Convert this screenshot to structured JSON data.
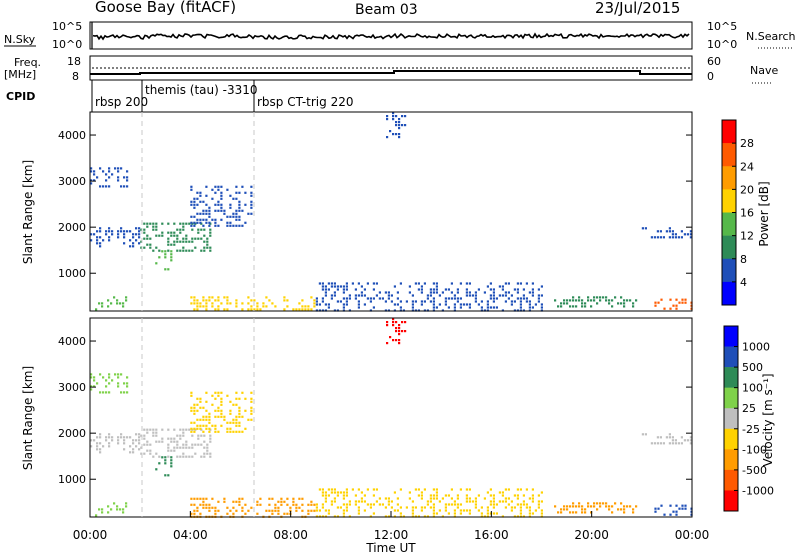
{
  "header": {
    "station": "Goose Bay (fitACF)",
    "beam": "Beam 03",
    "date": "23/Jul/2015"
  },
  "top_panel": {
    "left_label": "N.Sky",
    "left_ticks": [
      "10^5",
      "10^0"
    ],
    "right_ticks": [
      "10^5",
      "10^0"
    ],
    "right_label": "N.Search"
  },
  "freq_panel": {
    "left_label_line1": "Freq.",
    "left_label_line2": "[MHz]",
    "left_ticks": [
      "18",
      "8"
    ],
    "right_ticks": [
      "60",
      "0"
    ],
    "right_label": "Nave"
  },
  "cpid": {
    "label": "CPID",
    "segments": [
      {
        "start_hour": 0.0,
        "text": "rbsp 200"
      },
      {
        "start_hour": 2.0,
        "text": "themis (tau)  -3310"
      },
      {
        "start_hour": 6.5,
        "text": "rbsp CT-trig 220"
      }
    ]
  },
  "colors": {
    "power": [
      "#0000ff",
      "#1f4fb8",
      "#2e8b57",
      "#56b84a",
      "#ffd200",
      "#ff9c00",
      "#ff5a00",
      "#ff0000"
    ],
    "velocity": [
      "#ff0000",
      "#ff5a00",
      "#ff9c00",
      "#ffd200",
      "#bfbfbf",
      "#7fd24a",
      "#2e8b57",
      "#1f4fb8",
      "#0000ff"
    ]
  },
  "chart_data": [
    {
      "type": "heatmap",
      "title": "",
      "xlabel": "",
      "ylabel": "Slant Range [km]",
      "xlim": [
        0,
        24
      ],
      "ylim": [
        180,
        4500
      ],
      "yticks": [
        "1000",
        "2000",
        "3000",
        "4000"
      ],
      "colorbar_label": "Power [dB]",
      "colorbar_ticks": [
        "4",
        "8",
        "12",
        "16",
        "20",
        "24",
        "28"
      ],
      "regions": [
        {
          "x": [
            0.0,
            1.5
          ],
          "y": [
            2900,
            3300
          ],
          "level": 1
        },
        {
          "x": [
            0.0,
            2.0
          ],
          "y": [
            1600,
            2000
          ],
          "level": 1
        },
        {
          "x": [
            2.0,
            4.8
          ],
          "y": [
            1500,
            2100
          ],
          "level": 2
        },
        {
          "x": [
            4.0,
            6.4
          ],
          "y": [
            2000,
            2900
          ],
          "level": 1
        },
        {
          "x": [
            2.6,
            3.2
          ],
          "y": [
            1100,
            1500
          ],
          "level": 3
        },
        {
          "x": [
            0.2,
            1.4
          ],
          "y": [
            200,
            500
          ],
          "level": 3
        },
        {
          "x": [
            4.0,
            9.0
          ],
          "y": [
            200,
            500
          ],
          "level": 4
        },
        {
          "x": [
            9.0,
            18.0
          ],
          "y": [
            200,
            800
          ],
          "level": 1
        },
        {
          "x": [
            18.5,
            21.8
          ],
          "y": [
            300,
            500
          ],
          "level": 2
        },
        {
          "x": [
            22.0,
            24.0
          ],
          "y": [
            1800,
            2000
          ],
          "level": 1
        },
        {
          "x": [
            22.5,
            24.0
          ],
          "y": [
            200,
            450
          ],
          "level": 6
        },
        {
          "x": [
            11.8,
            12.6
          ],
          "y": [
            3900,
            4500
          ],
          "level": 1
        }
      ]
    },
    {
      "type": "heatmap",
      "title": "",
      "xlabel": "Time UT",
      "ylabel": "Slant Range [km]",
      "xlim": [
        0,
        24
      ],
      "ylim": [
        180,
        4500
      ],
      "xticks": [
        "00:00",
        "04:00",
        "08:00",
        "12:00",
        "16:00",
        "20:00",
        "00:00"
      ],
      "yticks": [
        "1000",
        "2000",
        "3000",
        "4000"
      ],
      "colorbar_label": "Velocity [m s⁻¹]",
      "colorbar_ticks": [
        "1000",
        "500",
        "100",
        "25",
        "-25",
        "-100",
        "-500",
        "-1000"
      ],
      "regions": [
        {
          "x": [
            0.0,
            1.5
          ],
          "y": [
            2900,
            3300
          ],
          "level": 5
        },
        {
          "x": [
            0.0,
            2.0
          ],
          "y": [
            1600,
            2000
          ],
          "level": 4
        },
        {
          "x": [
            2.0,
            4.8
          ],
          "y": [
            1500,
            2100
          ],
          "level": 4
        },
        {
          "x": [
            4.0,
            6.4
          ],
          "y": [
            2000,
            2900
          ],
          "level": 3
        },
        {
          "x": [
            2.6,
            3.2
          ],
          "y": [
            1100,
            1500
          ],
          "level": 6
        },
        {
          "x": [
            0.2,
            1.4
          ],
          "y": [
            200,
            500
          ],
          "level": 5
        },
        {
          "x": [
            4.0,
            9.0
          ],
          "y": [
            200,
            600
          ],
          "level": 2
        },
        {
          "x": [
            9.0,
            18.0
          ],
          "y": [
            200,
            800
          ],
          "level": 3
        },
        {
          "x": [
            18.5,
            21.8
          ],
          "y": [
            300,
            500
          ],
          "level": 2
        },
        {
          "x": [
            22.0,
            24.0
          ],
          "y": [
            1800,
            2000
          ],
          "level": 4
        },
        {
          "x": [
            22.5,
            24.0
          ],
          "y": [
            200,
            450
          ],
          "level": 7
        },
        {
          "x": [
            11.8,
            12.6
          ],
          "y": [
            3900,
            4500
          ],
          "level": 0
        }
      ]
    }
  ]
}
